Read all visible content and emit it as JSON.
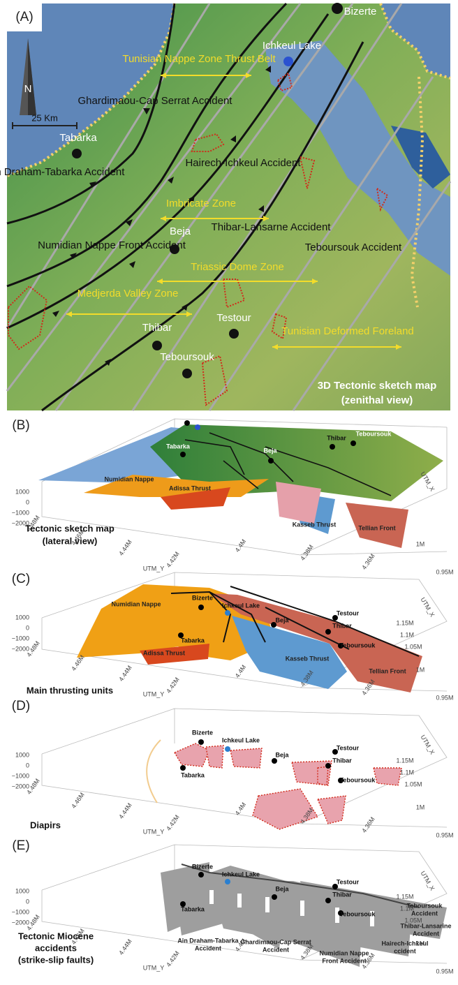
{
  "places": {
    "bizerte": "Bizerte",
    "ichkeul": "Ichkeul Lake",
    "tabarka": "Tabarka",
    "beja": "Beja",
    "thibar": "Thibar",
    "testour": "Testour",
    "teboursouk": "Teboursouk"
  },
  "units": {
    "numidian": "Numidian Nappe",
    "adissa": "Adissa Thrust",
    "kasseb": "Kasseb Thrust",
    "tellian": "Tellian Front"
  },
  "axes": {
    "z_ticks": [
      "1000",
      "0",
      "−1000",
      "−2000"
    ],
    "y_ticks": [
      "4.48M",
      "4.46M",
      "4.44M",
      "4.42M",
      "4.4M",
      "4.38M",
      "4.36M"
    ],
    "x_ticks": [
      "1.15M",
      "1.1M",
      "1.05M",
      "1M",
      "0.95M"
    ],
    "y_label": "UTM_Y",
    "x_label": "UTM_X"
  },
  "panel_a": {
    "label": "(A)",
    "north": "N",
    "scale": "25 Km",
    "zones": [
      "Tunisian Nappe Zone Thrust Belt",
      "Imbricate Zone",
      "Triassic Dome Zone",
      "Medjerda Valley Zone",
      "Tunisian Deformed Foreland"
    ],
    "faults": [
      "Ghardimaou-Cap Serrat Accident",
      "Hairech-Ichkeul Accident",
      "Thibar-Lansarne Accident",
      "Numidian Nappe Front Accident",
      "Teboursouk Accident",
      "Ain Draham-Tabarka Accident"
    ],
    "caption": [
      "3D Tectonic sketch map",
      "(zenithal view)"
    ]
  },
  "panel_b": {
    "label": "(B)",
    "caption": [
      "Tectonic sketch map",
      "(lateral view)"
    ]
  },
  "panel_c": {
    "label": "(C)",
    "caption": [
      "Main thrusting units"
    ]
  },
  "panel_d": {
    "label": "(D)",
    "caption": [
      "Diapirs"
    ]
  },
  "panel_e": {
    "label": "(E)",
    "faults": [
      [
        "Ain Draham-Tabarka",
        "Accident"
      ],
      [
        "Ghardimaou-Cap Serrat",
        "Accident"
      ],
      [
        "Numidian Nappe",
        "Front Accident"
      ],
      [
        "Hairech-Ichkeul",
        "ccident"
      ],
      [
        "Thibar-Lansarine",
        "Accident"
      ],
      [
        "Teboursouk",
        "Accident"
      ]
    ],
    "caption": [
      "Tectonic Miocene",
      "accidents",
      "(strike-slip faults)"
    ]
  }
}
